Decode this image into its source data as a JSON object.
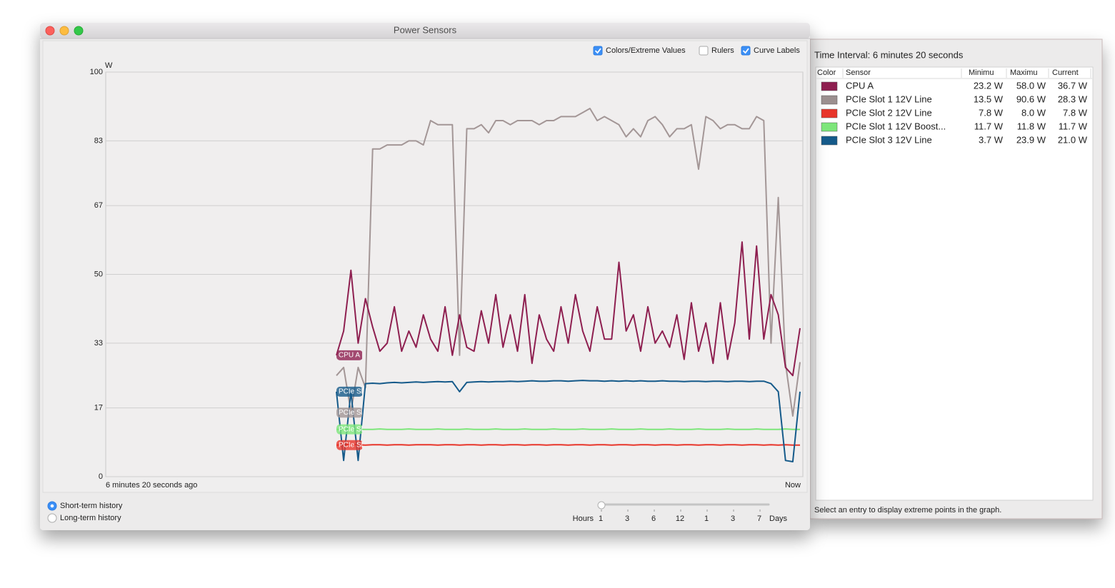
{
  "window": {
    "title": "Power Sensors"
  },
  "options": [
    {
      "label": "Colors/Extreme Values",
      "checked": true
    },
    {
      "label": "Rulers",
      "checked": false
    },
    {
      "label": "Curve Labels",
      "checked": true
    }
  ],
  "chart_data": {
    "type": "line",
    "y_unit": "W",
    "x_labels": [
      "6 minutes 20 seconds ago",
      "Now"
    ],
    "ylim": [
      0,
      100
    ],
    "yticks": [
      0,
      17,
      33,
      50,
      67,
      83,
      100
    ],
    "grid": true,
    "series": [
      {
        "name": "CPU A",
        "color": "#8e1f50",
        "values": [
          30,
          36,
          51,
          33,
          44,
          37,
          31,
          33,
          42,
          31,
          36,
          32,
          40,
          34,
          31,
          42,
          30,
          40,
          32,
          31,
          41,
          33,
          45,
          32,
          40,
          31,
          45,
          28,
          40,
          34,
          31,
          42,
          33,
          45,
          36,
          31,
          42,
          34,
          34,
          53,
          36,
          40,
          31,
          42,
          33,
          36,
          32,
          40,
          29,
          43,
          31,
          38,
          28,
          43,
          29,
          38,
          58,
          34,
          57,
          34,
          45,
          40,
          27,
          25,
          36.7
        ]
      },
      {
        "name": "PCIe Slot 1 12V Line",
        "color": "#a39696",
        "values": [
          25,
          27,
          16,
          27,
          22,
          81,
          81,
          82,
          82,
          82,
          83,
          83,
          82,
          88,
          87,
          87,
          87,
          30,
          86,
          86,
          87,
          85,
          88,
          88,
          87,
          88,
          88,
          88,
          87,
          88,
          88,
          89,
          89,
          89,
          90,
          91,
          88,
          89,
          88,
          87,
          84,
          86,
          84,
          88,
          89,
          87,
          84,
          86,
          86,
          87,
          76,
          89,
          88,
          86,
          87,
          87,
          86,
          86,
          89,
          88,
          33,
          69,
          28,
          15,
          28.3
        ]
      },
      {
        "name": "PCIe Slot 2 12V Line",
        "color": "#e8352a",
        "values": [
          7.8,
          7.9,
          8.0,
          7.9,
          7.8,
          7.9,
          7.9,
          7.8,
          7.9,
          7.9,
          7.8,
          7.9,
          7.9,
          7.9,
          7.8,
          7.9,
          7.9,
          7.8,
          7.9,
          7.9,
          7.8,
          7.9,
          7.9,
          7.8,
          7.9,
          7.9,
          7.8,
          7.9,
          7.9,
          7.8,
          7.9,
          7.9,
          7.8,
          7.9,
          7.9,
          7.8,
          7.9,
          7.9,
          7.8,
          7.9,
          7.9,
          7.8,
          7.9,
          7.9,
          7.8,
          7.9,
          7.9,
          7.8,
          7.9,
          7.9,
          7.8,
          7.9,
          7.9,
          7.8,
          7.9,
          7.9,
          7.8,
          7.9,
          7.9,
          7.8,
          7.9,
          7.8,
          7.9,
          7.8,
          7.8
        ]
      },
      {
        "name": "PCIe Slot 1 12V Boost...",
        "color": "#7de67a",
        "values": [
          11.7,
          11.7,
          11.8,
          11.7,
          11.7,
          11.7,
          11.8,
          11.7,
          11.7,
          11.7,
          11.8,
          11.7,
          11.7,
          11.7,
          11.8,
          11.7,
          11.7,
          11.7,
          11.8,
          11.7,
          11.7,
          11.7,
          11.8,
          11.7,
          11.7,
          11.7,
          11.8,
          11.7,
          11.7,
          11.7,
          11.8,
          11.7,
          11.7,
          11.7,
          11.8,
          11.7,
          11.7,
          11.7,
          11.8,
          11.7,
          11.7,
          11.7,
          11.8,
          11.7,
          11.7,
          11.7,
          11.8,
          11.7,
          11.7,
          11.7,
          11.8,
          11.7,
          11.7,
          11.7,
          11.8,
          11.7,
          11.7,
          11.7,
          11.8,
          11.7,
          11.7,
          11.7,
          11.8,
          11.7,
          11.7
        ]
      },
      {
        "name": "PCIe Slot 3 12V Line",
        "color": "#155a8a",
        "values": [
          21,
          4,
          21,
          4,
          23,
          23.1,
          23,
          23.2,
          23.3,
          23.2,
          23.3,
          23.4,
          23.3,
          23.4,
          23.5,
          23.4,
          23.5,
          21,
          23.3,
          23.4,
          23.5,
          23.4,
          23.5,
          23.5,
          23.6,
          23.5,
          23.6,
          23.7,
          23.6,
          23.6,
          23.7,
          23.7,
          23.6,
          23.7,
          23.8,
          23.7,
          23.7,
          23.6,
          23.7,
          23.6,
          23.7,
          23.6,
          23.7,
          23.6,
          23.6,
          23.7,
          23.6,
          23.6,
          23.5,
          23.6,
          23.6,
          23.5,
          23.6,
          23.6,
          23.5,
          23.6,
          23.6,
          23.5,
          23.6,
          23.6,
          23,
          21,
          4,
          3.7,
          21
        ]
      }
    ]
  },
  "history": [
    {
      "label": "Short-term history",
      "selected": true
    },
    {
      "label": "Long-term history",
      "selected": false
    }
  ],
  "slider": {
    "left": "Hours",
    "right": "Days",
    "ticks": [
      "1",
      "3",
      "6",
      "12",
      "1",
      "3",
      "7"
    ]
  },
  "sidebar": {
    "interval": "Time Interval: 6 minutes 20 seconds",
    "columns": [
      "Color",
      "Sensor",
      "Minimu",
      "Maximu",
      "Current"
    ],
    "rows": [
      {
        "color": "#8e1f50",
        "cells": [
          "CPU A",
          "23.2 W",
          "58.0 W",
          "36.7 W"
        ]
      },
      {
        "color": "#9b8f8f",
        "cells": [
          "PCIe Slot 1 12V Line",
          "13.5 W",
          "90.6 W",
          "28.3 W"
        ]
      },
      {
        "color": "#e8352a",
        "cells": [
          "PCIe Slot 2 12V Line",
          "7.8 W",
          "8.0 W",
          "7.8 W"
        ]
      },
      {
        "color": "#7de67a",
        "cells": [
          "PCIe Slot 1 12V Boost...",
          "11.7 W",
          "11.8 W",
          "11.7 W"
        ]
      },
      {
        "color": "#155a8a",
        "cells": [
          "PCIe Slot 3 12V Line",
          "3.7 W",
          "23.9 W",
          "21.0 W"
        ]
      }
    ],
    "hint": "Select an entry to display extreme points in the graph."
  }
}
